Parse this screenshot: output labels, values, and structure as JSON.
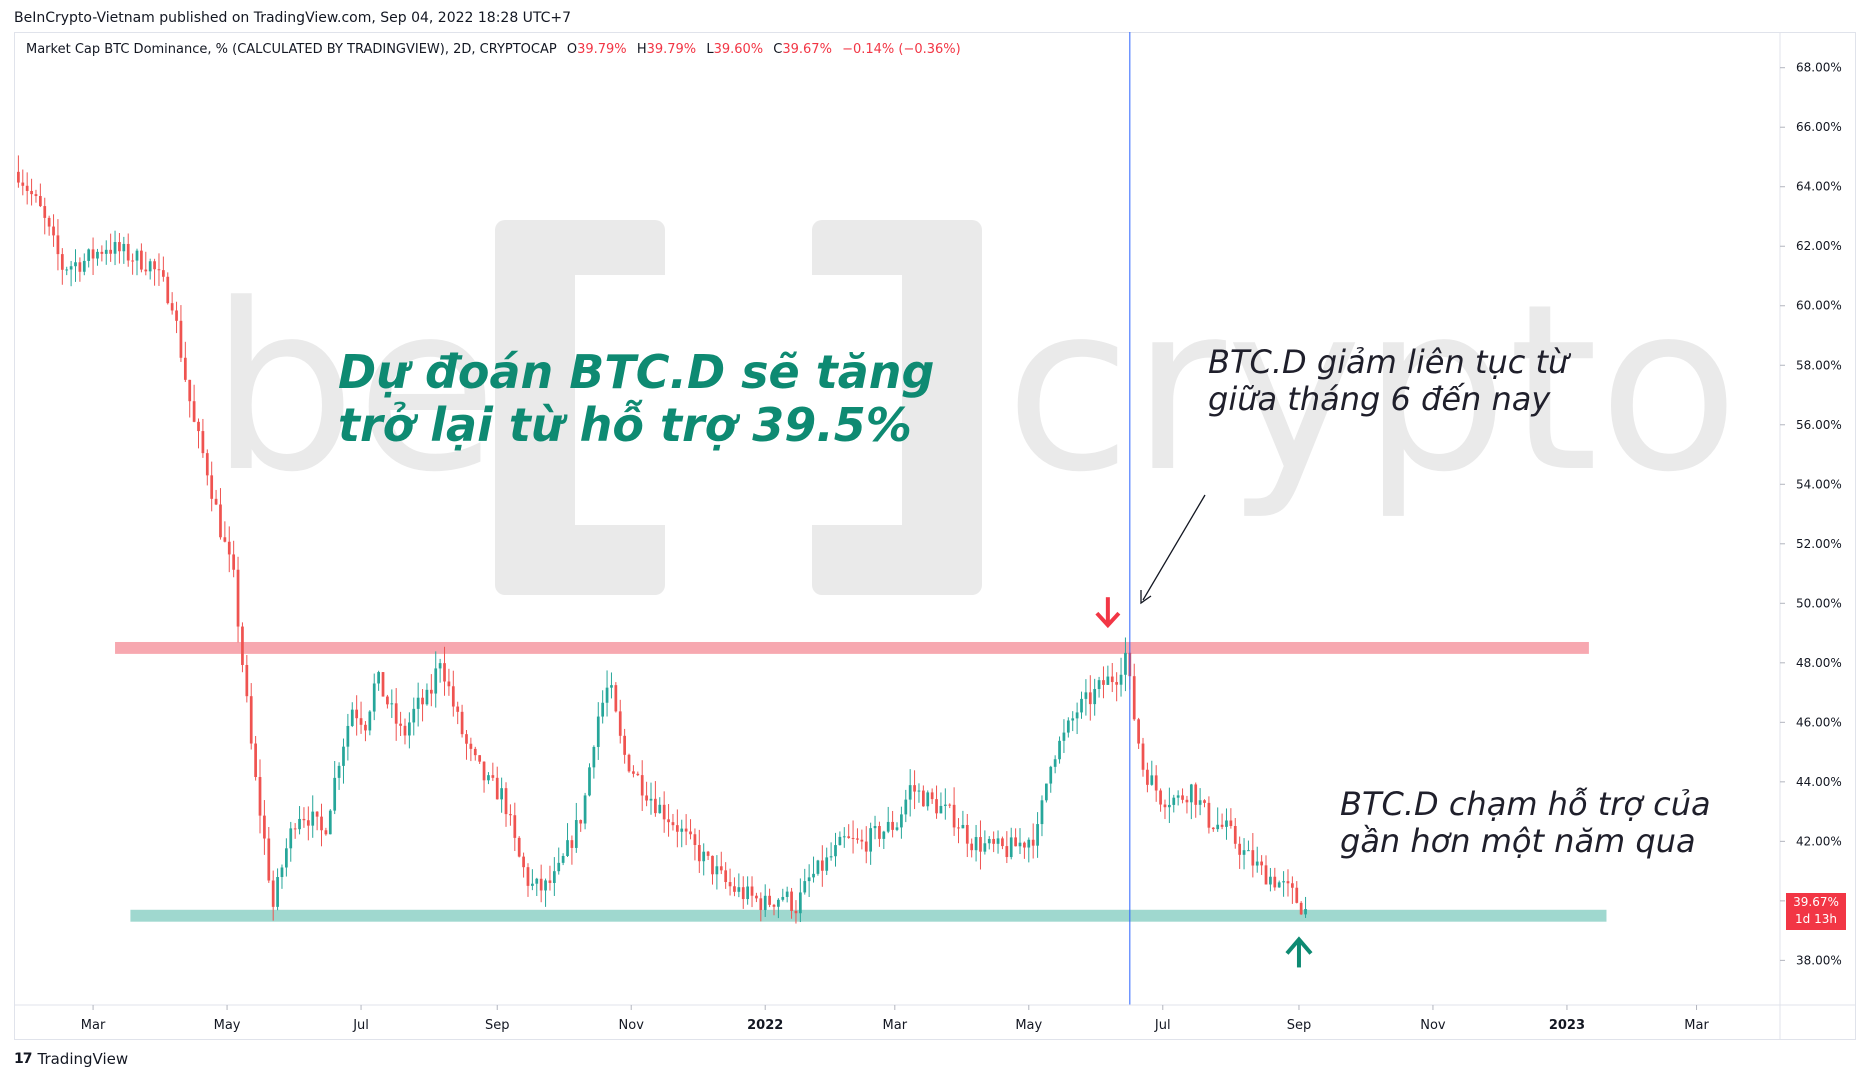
{
  "header": {
    "publisher": "BeInCrypto-Vietnam published on TradingView.com, Sep 04, 2022 18:28 UTC+7"
  },
  "legend": {
    "symbol": "Market Cap BTC Dominance, % (CALCULATED BY TRADINGVIEW), 2D, CRYPTOCAP",
    "open_label": "O",
    "open": "39.79%",
    "high_label": "H",
    "high": "39.79%",
    "low_label": "L",
    "low": "39.60%",
    "close_label": "C",
    "close": "39.67%",
    "change": "−0.14% (−0.36%)"
  },
  "price_tag": {
    "value": "39.67%",
    "countdown": "1d 13h"
  },
  "annotations": {
    "main_line1": "Dự đoán BTC.D sẽ tăng",
    "main_line2": "trở lại từ hỗ trợ 39.5%",
    "right_line1": "BTC.D giảm liên tục từ",
    "right_line2": "giữa tháng 6 đến nay",
    "bottom_line1": "BTC.D chạm hỗ trợ của",
    "bottom_line2": "gần hơn một năm qua"
  },
  "watermark": {
    "text_left": "be",
    "text_right": "crypto",
    "logo": "bracket-in-logo"
  },
  "footer": {
    "brand": "TradingView",
    "icon": "tradingview-logo-icon"
  },
  "colors": {
    "up": "#26a69a",
    "down": "#ef5350",
    "resistance": "#f7a8b0",
    "support": "#9fd8cf",
    "arrow_down": "#f23645",
    "arrow_up": "#0e8a72",
    "vline": "#2962ff",
    "price_tag": "#f23645"
  },
  "chart_data": {
    "type": "candlestick",
    "y_unit": "%",
    "y_ticks": [
      "68.00%",
      "66.00%",
      "64.00%",
      "62.00%",
      "60.00%",
      "58.00%",
      "56.00%",
      "54.00%",
      "52.00%",
      "50.00%",
      "48.00%",
      "46.00%",
      "44.00%",
      "42.00%",
      "40.00%",
      "38.00%"
    ],
    "y_tick_values": [
      68,
      66,
      64,
      62,
      60,
      58,
      56,
      54,
      52,
      50,
      48,
      46,
      44,
      42,
      40,
      38
    ],
    "ylim": [
      36.5,
      69.2
    ],
    "x_ticks": [
      "Mar",
      "May",
      "Jul",
      "Sep",
      "Nov",
      "2022",
      "Mar",
      "May",
      "Jul",
      "Sep",
      "Nov",
      "2023",
      "Mar"
    ],
    "x_tick_dates": [
      "2021-03-01",
      "2021-05-01",
      "2021-07-01",
      "2021-09-01",
      "2021-11-01",
      "2022-01-01",
      "2022-03-01",
      "2022-05-01",
      "2022-07-01",
      "2022-09-01",
      "2022-11-01",
      "2023-01-01",
      "2023-03-01"
    ],
    "xlim": [
      "2021-01-24",
      "2023-04-08"
    ],
    "resistance_zone": {
      "low": 48.3,
      "high": 48.7,
      "from": "2021-03-11",
      "to": "2023-01-11"
    },
    "support_zone": {
      "low": 39.3,
      "high": 39.7,
      "from": "2021-03-18",
      "to": "2023-01-19"
    },
    "vertical_marker": "2022-06-16",
    "arrow_down_at": {
      "date": "2022-06-06",
      "value": 49.6
    },
    "arrow_up_at": {
      "date": "2022-09-01",
      "value": 38.3
    },
    "last_close": 39.67,
    "path": [
      [
        "2021-01-26",
        64.5
      ],
      [
        "2021-02-05",
        63.2
      ],
      [
        "2021-02-15",
        61.3
      ],
      [
        "2021-02-25",
        61.5
      ],
      [
        "2021-03-07",
        62.0
      ],
      [
        "2021-03-17",
        61.7
      ],
      [
        "2021-03-27",
        61.4
      ],
      [
        "2021-04-06",
        60.2
      ],
      [
        "2021-04-11",
        58.0
      ],
      [
        "2021-04-16",
        56.0
      ],
      [
        "2021-04-22",
        54.5
      ],
      [
        "2021-04-28",
        52.5
      ],
      [
        "2021-05-04",
        50.8
      ],
      [
        "2021-05-08",
        48.0
      ],
      [
        "2021-05-13",
        44.5
      ],
      [
        "2021-05-18",
        42.0
      ],
      [
        "2021-05-22",
        39.8
      ],
      [
        "2021-05-27",
        41.5
      ],
      [
        "2021-06-02",
        43.0
      ],
      [
        "2021-06-08",
        42.8
      ],
      [
        "2021-06-14",
        42.2
      ],
      [
        "2021-06-21",
        44.8
      ],
      [
        "2021-06-27",
        46.5
      ],
      [
        "2021-07-03",
        46.0
      ],
      [
        "2021-07-08",
        47.5
      ],
      [
        "2021-07-14",
        46.5
      ],
      [
        "2021-07-20",
        45.5
      ],
      [
        "2021-07-26",
        46.5
      ],
      [
        "2021-08-01",
        46.8
      ],
      [
        "2021-08-06",
        48.2
      ],
      [
        "2021-08-13",
        46.3
      ],
      [
        "2021-08-19",
        45.0
      ],
      [
        "2021-08-27",
        44.0
      ],
      [
        "2021-09-04",
        43.5
      ],
      [
        "2021-09-10",
        41.6
      ],
      [
        "2021-09-16",
        40.5
      ],
      [
        "2021-09-22",
        40.4
      ],
      [
        "2021-09-28",
        40.8
      ],
      [
        "2021-10-04",
        41.9
      ],
      [
        "2021-10-10",
        43.0
      ],
      [
        "2021-10-16",
        46.0
      ],
      [
        "2021-10-22",
        47.3
      ],
      [
        "2021-10-28",
        45.0
      ],
      [
        "2021-11-05",
        44.0
      ],
      [
        "2021-11-13",
        43.2
      ],
      [
        "2021-11-21",
        42.6
      ],
      [
        "2021-11-29",
        41.8
      ],
      [
        "2021-12-07",
        41.2
      ],
      [
        "2021-12-15",
        40.5
      ],
      [
        "2021-12-23",
        40.2
      ],
      [
        "2022-01-01",
        39.9
      ],
      [
        "2022-01-09",
        40.2
      ],
      [
        "2022-01-15",
        39.8
      ],
      [
        "2022-01-21",
        40.7
      ],
      [
        "2022-01-29",
        41.3
      ],
      [
        "2022-02-06",
        42.0
      ],
      [
        "2022-02-14",
        41.9
      ],
      [
        "2022-02-22",
        42.3
      ],
      [
        "2022-03-02",
        42.6
      ],
      [
        "2022-03-08",
        43.8
      ],
      [
        "2022-03-14",
        43.5
      ],
      [
        "2022-03-20",
        43.2
      ],
      [
        "2022-03-28",
        42.8
      ],
      [
        "2022-04-05",
        42.0
      ],
      [
        "2022-04-13",
        41.8
      ],
      [
        "2022-04-21",
        41.7
      ],
      [
        "2022-04-29",
        42.0
      ],
      [
        "2022-05-05",
        42.3
      ],
      [
        "2022-05-11",
        44.8
      ],
      [
        "2022-05-17",
        45.5
      ],
      [
        "2022-05-23",
        46.4
      ],
      [
        "2022-05-29",
        46.8
      ],
      [
        "2022-06-04",
        47.3
      ],
      [
        "2022-06-10",
        47.6
      ],
      [
        "2022-06-14",
        48.3
      ],
      [
        "2022-06-18",
        46.2
      ],
      [
        "2022-06-22",
        44.5
      ],
      [
        "2022-06-30",
        43.5
      ],
      [
        "2022-07-08",
        43.4
      ],
      [
        "2022-07-14",
        43.8
      ],
      [
        "2022-07-22",
        42.7
      ],
      [
        "2022-07-30",
        42.4
      ],
      [
        "2022-08-07",
        41.6
      ],
      [
        "2022-08-15",
        41.0
      ],
      [
        "2022-08-23",
        40.6
      ],
      [
        "2022-08-29",
        40.2
      ],
      [
        "2022-09-04",
        39.67
      ]
    ]
  }
}
